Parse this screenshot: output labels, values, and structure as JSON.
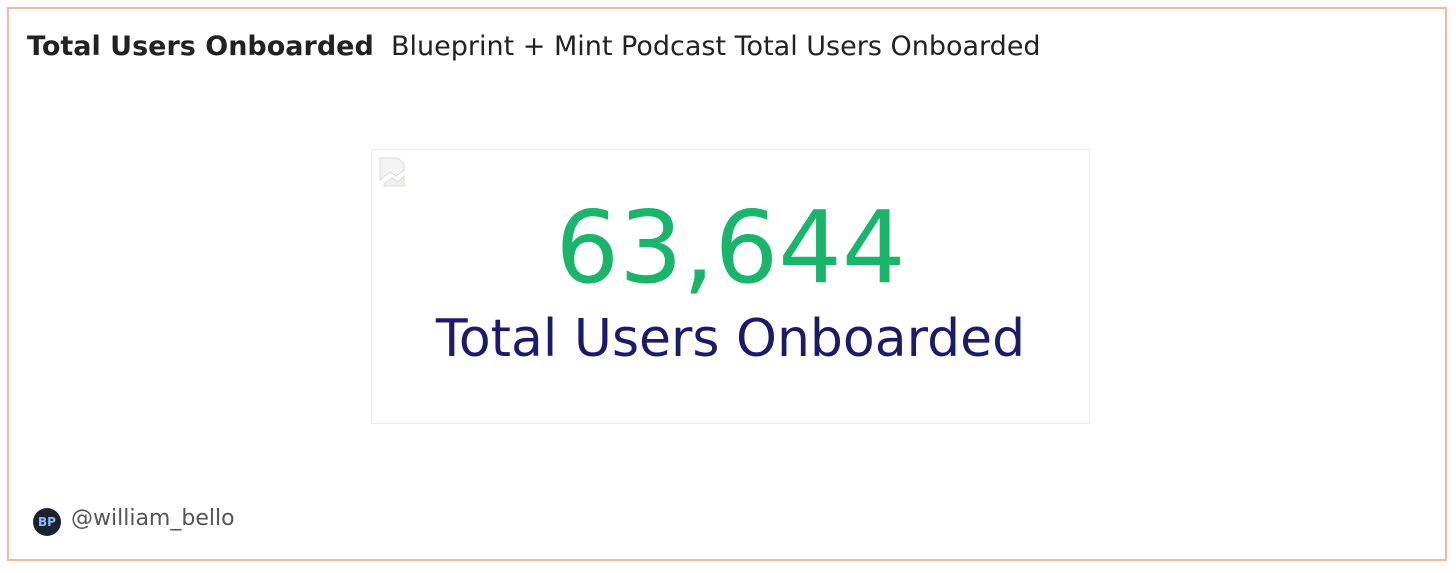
{
  "header": {
    "title": "Total Users Onboarded",
    "subtitle": "Blueprint + Mint Podcast Total Users Onboarded"
  },
  "counter": {
    "value": "63,644",
    "label": "Total Users Onboarded"
  },
  "footer": {
    "avatar": "BP",
    "author": "@william_bello"
  }
}
